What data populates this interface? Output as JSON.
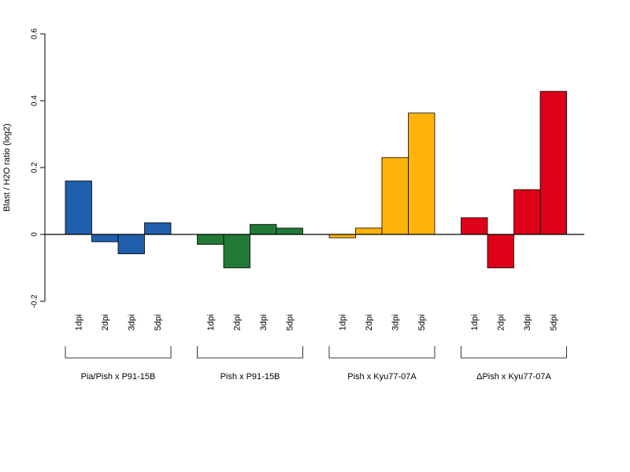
{
  "chart_data": {
    "type": "bar",
    "ylabel": "Blast / H2O ratio (log2)",
    "ylim": [
      -0.2,
      0.6
    ],
    "yticks": [
      -0.2,
      0,
      0.2,
      0.4,
      0.6
    ],
    "ytick_labels": [
      "-0.2",
      "0",
      "0.2",
      "0.4",
      "0.6"
    ],
    "categories": [
      "1dpi",
      "2dpi",
      "3dpi",
      "5dpi"
    ],
    "grid": false,
    "legend": "none",
    "groups": [
      {
        "name": "Pia/Pish x P91-15B",
        "color": "#1f5fac",
        "values": [
          0.16,
          -0.022,
          -0.058,
          0.035
        ]
      },
      {
        "name": "Pish x P91-15B",
        "color": "#207a36",
        "values": [
          -0.03,
          -0.1,
          0.03,
          0.019
        ]
      },
      {
        "name": "Pish x Kyu77-07A",
        "color": "#ffb30a",
        "values": [
          -0.01,
          0.019,
          0.23,
          0.363
        ]
      },
      {
        "name": "ΔPish x Kyu77-07A",
        "color": "#dc0018",
        "values": [
          0.05,
          -0.1,
          0.134,
          0.428
        ]
      }
    ]
  }
}
